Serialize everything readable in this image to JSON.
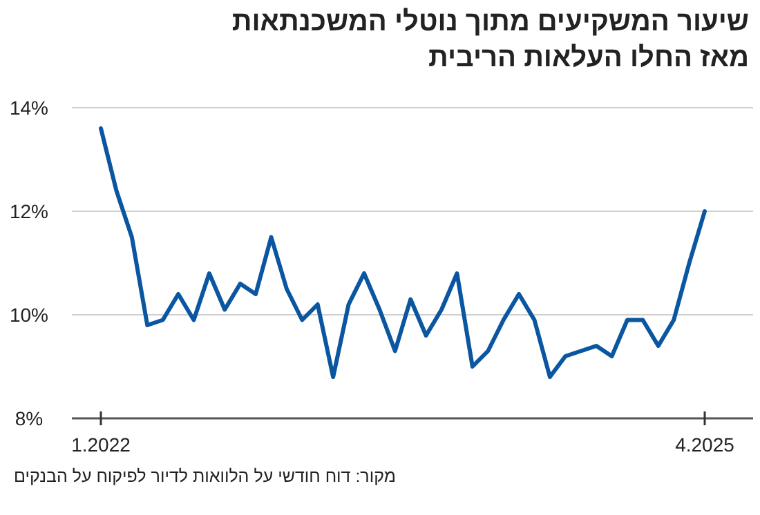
{
  "chart_data": {
    "type": "line",
    "title": "שיעור המשקיעים מתוך נוטלי המשכנתאות",
    "subtitle": "מאז החלו העלאות הריבית",
    "categories": [
      "1.2022",
      null,
      null,
      null,
      null,
      null,
      null,
      null,
      null,
      null,
      null,
      null,
      null,
      null,
      null,
      null,
      null,
      null,
      null,
      null,
      null,
      null,
      null,
      null,
      null,
      null,
      null,
      null,
      null,
      null,
      null,
      null,
      null,
      null,
      null,
      null,
      null,
      null,
      null,
      "4.2025"
    ],
    "values": [
      13.6,
      12.4,
      11.5,
      9.8,
      9.9,
      10.4,
      9.9,
      10.8,
      10.1,
      10.6,
      10.4,
      11.5,
      10.5,
      9.9,
      10.2,
      8.8,
      10.2,
      10.8,
      10.1,
      9.3,
      10.3,
      9.6,
      10.1,
      10.8,
      9.0,
      9.3,
      9.9,
      10.4,
      9.9,
      8.8,
      9.2,
      9.3,
      9.4,
      9.2,
      9.9,
      9.9,
      9.4,
      9.9,
      11.0,
      12.0
    ],
    "color": "#0a56a0",
    "ylim": [
      8,
      14
    ],
    "yticks": [
      {
        "value": 8,
        "label": "8%"
      },
      {
        "value": 10,
        "label": "10%"
      },
      {
        "value": 12,
        "label": "12%"
      },
      {
        "value": 14,
        "label": "14%"
      }
    ],
    "grid": "y",
    "annotations": [
      "מקור: דוח חודשי על הלוואות לדיור לפיקוח על הבנקים"
    ]
  }
}
